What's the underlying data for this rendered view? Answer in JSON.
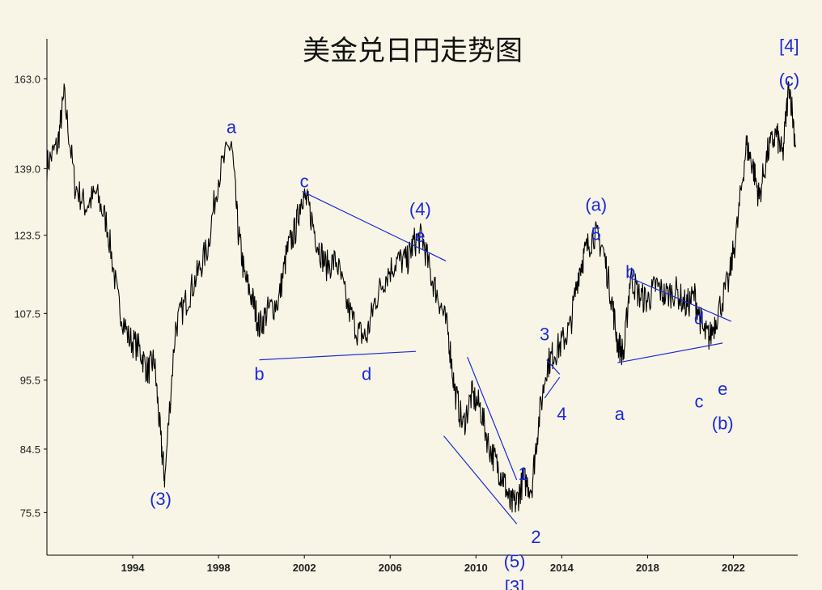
{
  "chart_data": {
    "type": "line",
    "title": "美金兑日円走势图",
    "xlabel": "",
    "ylabel": "",
    "xlim": [
      1990.0,
      2025.0
    ],
    "ylim": [
      70.0,
      175.0
    ],
    "y_scale": "log",
    "x_ticks": [
      1994,
      1998,
      2002,
      2006,
      2010,
      2014,
      2018,
      2022
    ],
    "y_ticks": [
      "75.5",
      "84.5",
      "95.5",
      "107.5",
      "123.5",
      "139.0",
      "163.0"
    ],
    "grid": false,
    "line_color": "#000000",
    "annotation_color": "#1a2ad8",
    "series": [
      {
        "x": [
          1990.0,
          1990.5,
          1990.8,
          1991.3,
          1991.8,
          1992.3,
          1992.8,
          1993.3,
          1993.8,
          1994.3,
          1994.7,
          1995.0,
          1995.3,
          1995.5,
          1996.0,
          1996.5,
          1997.0,
          1997.5,
          1998.0,
          1998.6,
          1998.9,
          1999.2,
          1999.6,
          1999.9,
          2000.3,
          2000.8,
          2001.2,
          2001.6,
          2001.9,
          2002.2,
          2002.6,
          2003.0,
          2003.5,
          2004.0,
          2004.5,
          2004.9,
          2005.3,
          2005.8,
          2006.3,
          2006.8,
          2007.1,
          2007.5,
          2007.9,
          2008.3,
          2008.7,
          2009.0,
          2009.4,
          2009.8,
          2010.2,
          2010.6,
          2011.0,
          2011.3,
          2011.6,
          2011.9,
          2012.2,
          2012.6,
          2012.9,
          2013.3,
          2013.6,
          2014.0,
          2014.4,
          2014.8,
          2015.1,
          2015.5,
          2015.9,
          2016.3,
          2016.6,
          2016.9,
          2017.2,
          2017.6,
          2018.0,
          2018.4,
          2018.8,
          2019.3,
          2019.8,
          2020.2,
          2020.6,
          2020.9,
          2021.3,
          2021.8,
          2022.2,
          2022.6,
          2022.9,
          2023.2,
          2023.6,
          2024.0,
          2024.3,
          2024.6,
          2024.9
        ],
        "y": [
          140.0,
          145.0,
          158.0,
          135.0,
          130.0,
          133.0,
          126.0,
          110.0,
          103.0,
          101.0,
          97.0,
          99.0,
          86.0,
          80.0,
          105.0,
          110.0,
          115.0,
          121.0,
          137.0,
          146.0,
          125.0,
          115.0,
          110.0,
          105.0,
          108.0,
          110.0,
          120.0,
          125.0,
          133.0,
          130.0,
          122.0,
          117.0,
          118.0,
          109.0,
          104.0,
          103.0,
          110.0,
          115.0,
          118.0,
          118.0,
          122.0,
          123.0,
          115.0,
          110.0,
          104.0,
          94.0,
          88.0,
          93.0,
          91.0,
          85.0,
          82.0,
          80.0,
          76.5,
          77.0,
          80.0,
          79.0,
          88.0,
          98.0,
          100.0,
          102.0,
          105.0,
          116.0,
          120.0,
          124.0,
          121.0,
          111.0,
          102.0,
          100.0,
          115.0,
          111.0,
          110.0,
          113.0,
          111.0,
          112.0,
          109.0,
          111.0,
          104.0,
          103.0,
          108.0,
          114.0,
          126.0,
          145.0,
          140.0,
          132.0,
          143.0,
          148.0,
          142.0,
          162.0,
          145.0
        ]
      }
    ],
    "annotations": [
      {
        "text": "a",
        "x": 1998.6,
        "y": 148.0
      },
      {
        "text": "(3)",
        "x": 1995.3,
        "y": 76.5
      },
      {
        "text": "b",
        "x": 1999.9,
        "y": 95.5
      },
      {
        "text": "c",
        "x": 2002.0,
        "y": 134.5
      },
      {
        "text": "d",
        "x": 2004.9,
        "y": 95.5
      },
      {
        "text": "(4)",
        "x": 2007.4,
        "y": 128.0
      },
      {
        "text": "e",
        "x": 2007.4,
        "y": 122.0
      },
      {
        "text": "1",
        "x": 2012.2,
        "y": 80.0
      },
      {
        "text": "2",
        "x": 2012.8,
        "y": 71.5
      },
      {
        "text": "(5)",
        "x": 2011.8,
        "y": 68.5
      },
      {
        "text": "[3]",
        "x": 2011.8,
        "y": 65.5
      },
      {
        "text": "3",
        "x": 2013.2,
        "y": 102.5
      },
      {
        "text": "4",
        "x": 2014.0,
        "y": 89.0
      },
      {
        "text": "(a)",
        "x": 2015.6,
        "y": 129.0
      },
      {
        "text": "5",
        "x": 2015.6,
        "y": 122.5
      },
      {
        "text": "a",
        "x": 2016.7,
        "y": 89.0
      },
      {
        "text": "b",
        "x": 2017.2,
        "y": 114.5
      },
      {
        "text": "d",
        "x": 2020.4,
        "y": 105.5
      },
      {
        "text": "c",
        "x": 2020.4,
        "y": 91.0
      },
      {
        "text": "e",
        "x": 2021.5,
        "y": 93.0
      },
      {
        "text": "(b)",
        "x": 2021.5,
        "y": 87.5
      },
      {
        "text": "[4]",
        "x": 2024.6,
        "y": 171.0
      },
      {
        "text": "(c)",
        "x": 2024.6,
        "y": 161.0
      }
    ],
    "trend_lines": [
      {
        "from": [
          2001.9,
          133.5
        ],
        "to": [
          2008.6,
          118.0
        ]
      },
      {
        "from": [
          1999.9,
          99.0
        ],
        "to": [
          2007.2,
          100.5
        ]
      },
      {
        "from": [
          2009.6,
          99.5
        ],
        "to": [
          2011.9,
          80.0
        ]
      },
      {
        "from": [
          2008.5,
          86.5
        ],
        "to": [
          2011.9,
          74.0
        ]
      },
      {
        "from": [
          2013.3,
          99.0
        ],
        "to": [
          2013.9,
          96.5
        ]
      },
      {
        "from": [
          2013.2,
          92.5
        ],
        "to": [
          2013.9,
          96.0
        ]
      },
      {
        "from": [
          2017.2,
          114.5
        ],
        "to": [
          2021.9,
          106.0
        ]
      },
      {
        "from": [
          2016.6,
          98.5
        ],
        "to": [
          2021.5,
          102.0
        ]
      }
    ]
  }
}
